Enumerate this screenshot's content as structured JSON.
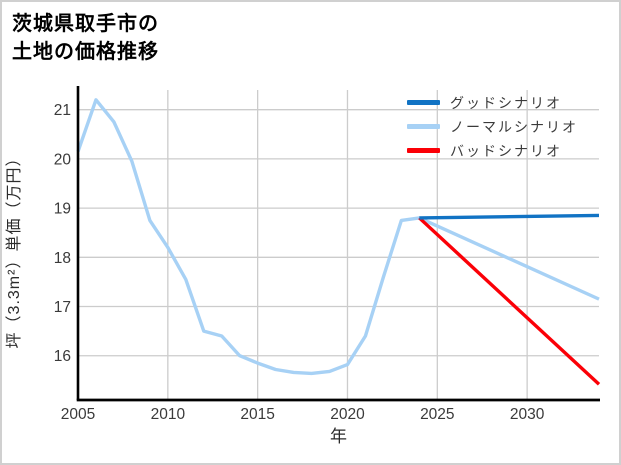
{
  "title": "茨城県取手市の\n土地の価格推移",
  "chart_data": {
    "type": "line",
    "title": "茨城県取手市の土地の価格推移",
    "xlabel": "年",
    "ylabel": "坪（3.3m²）単価（万円）",
    "xlim": [
      2005,
      2034
    ],
    "ylim": [
      15.1,
      21.4
    ],
    "x_ticks": [
      2005,
      2010,
      2015,
      2020,
      2025,
      2030
    ],
    "y_ticks": [
      16,
      17,
      18,
      19,
      20,
      21
    ],
    "grid": true,
    "grid_color": "#cccccc",
    "axis_color": "#000000",
    "tick_label_color": "#3a3a3a",
    "legend_position": "upper right",
    "series": [
      {
        "name": "グッドシナリオ",
        "color": "#1173c4",
        "x": [
          2024,
          2034
        ],
        "values": [
          18.8,
          18.85
        ]
      },
      {
        "name": "ノーマルシナリオ",
        "color": "#a7d1f5",
        "x": [
          2005,
          2006,
          2007,
          2008,
          2009,
          2010,
          2011,
          2012,
          2013,
          2014,
          2015,
          2016,
          2017,
          2018,
          2019,
          2020,
          2021,
          2022,
          2023,
          2024,
          2034
        ],
        "values": [
          20.15,
          21.2,
          20.75,
          19.95,
          18.75,
          18.2,
          17.55,
          16.5,
          16.4,
          16.0,
          15.85,
          15.72,
          15.66,
          15.64,
          15.68,
          15.82,
          16.4,
          17.6,
          18.75,
          18.8,
          17.15
        ]
      },
      {
        "name": "バッドシナリオ",
        "color": "#fb0007",
        "x": [
          2024,
          2034
        ],
        "values": [
          18.8,
          15.42
        ]
      }
    ]
  }
}
